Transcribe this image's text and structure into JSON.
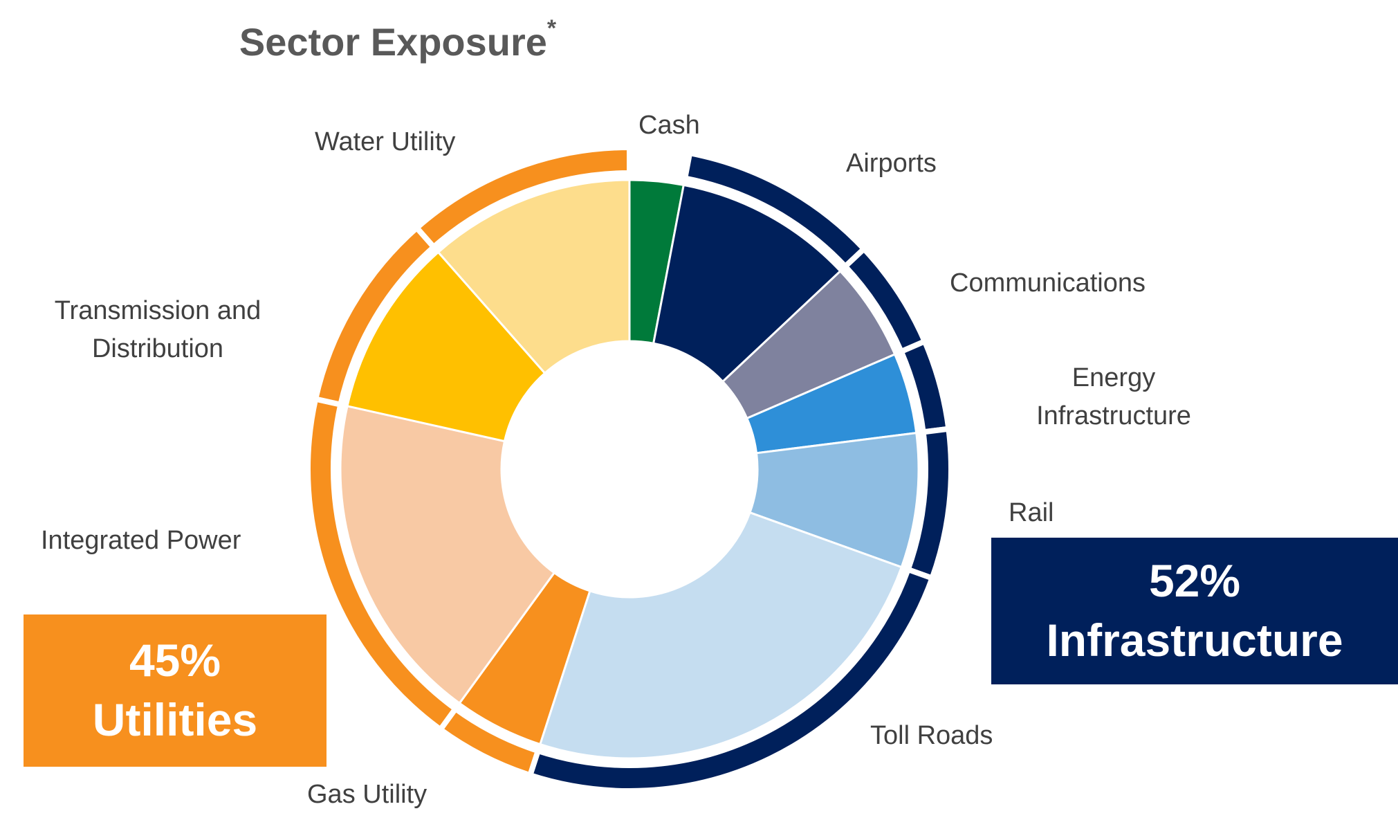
{
  "chart_data": {
    "type": "pie",
    "title": "Sector Exposure",
    "title_marker": "*",
    "slices": [
      {
        "label": "Cash",
        "value": 3,
        "color": "#007A3A"
      },
      {
        "label": "Airports",
        "value": 10,
        "color": "#00205B"
      },
      {
        "label": "Communications",
        "value": 5.5,
        "color": "#7F829E"
      },
      {
        "label": "Energy Infrastructure",
        "value": 4.5,
        "color": "#2E8FD8"
      },
      {
        "label": "Rail",
        "value": 7.5,
        "color": "#8EBDE2"
      },
      {
        "label": "Toll Roads",
        "value": 24.5,
        "color": "#C5DDF0"
      },
      {
        "label": "Gas Utility",
        "value": 5,
        "color": "#F7901E"
      },
      {
        "label": "Integrated Power",
        "value": 18.5,
        "color": "#F8C9A4"
      },
      {
        "label": "Transmission and Distribution",
        "value": 10,
        "color": "#FFC000"
      },
      {
        "label": "Water Utility",
        "value": 11.5,
        "color": "#FDDD8C"
      }
    ],
    "groups": [
      {
        "name": "Infrastructure",
        "percent_label": "52%",
        "color": "#00205B",
        "members": [
          "Airports",
          "Communications",
          "Energy Infrastructure",
          "Rail",
          "Toll Roads"
        ]
      },
      {
        "name": "Utilities",
        "percent_label": "45%",
        "color": "#F7901E",
        "members": [
          "Gas Utility",
          "Integrated Power",
          "Transmission and Distribution",
          "Water Utility"
        ]
      }
    ]
  },
  "callouts": {
    "utilities": {
      "percent": "45%",
      "name": "Utilities"
    },
    "infrastructure": {
      "percent": "52%",
      "name": "Infrastructure"
    }
  },
  "labels": {
    "cash": "Cash",
    "airports": "Airports",
    "communications": "Communications",
    "energy_line1": "Energy",
    "energy_line2": "Infrastructure",
    "rail": "Rail",
    "toll_roads": "Toll Roads",
    "gas_utility": "Gas Utility",
    "integrated_power": "Integrated Power",
    "transmission_line1": "Transmission and",
    "transmission_line2": "Distribution",
    "water_utility": "Water Utility"
  }
}
